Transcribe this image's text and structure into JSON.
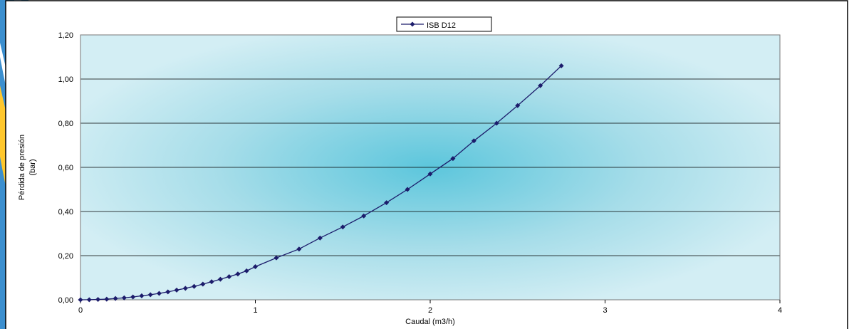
{
  "chart_data": {
    "type": "line",
    "x_label": "Caudal (m3/h)",
    "y_label": [
      "Pérdida de presión",
      "(bar)"
    ],
    "x": [
      0,
      0.05,
      0.1,
      0.15,
      0.2,
      0.25,
      0.3,
      0.35,
      0.4,
      0.45,
      0.5,
      0.55,
      0.6,
      0.65,
      0.7,
      0.75,
      0.8,
      0.85,
      0.9,
      0.95,
      1.0,
      1.12,
      1.25,
      1.37,
      1.5,
      1.62,
      1.75,
      1.87,
      2.0,
      2.13,
      2.25,
      2.38,
      2.5,
      2.63,
      2.75
    ],
    "series": [
      {
        "name": "ISB D12",
        "color": "#1c1c6b",
        "values": [
          0,
          0.0004,
          0.0015,
          0.003,
          0.006,
          0.009,
          0.013,
          0.018,
          0.023,
          0.029,
          0.036,
          0.044,
          0.052,
          0.061,
          0.071,
          0.082,
          0.093,
          0.105,
          0.117,
          0.131,
          0.15,
          0.19,
          0.23,
          0.28,
          0.33,
          0.38,
          0.44,
          0.5,
          0.57,
          0.64,
          0.72,
          0.8,
          0.88,
          0.97,
          1.06
        ]
      }
    ],
    "xlim": [
      0,
      4
    ],
    "xticks": [
      0,
      1,
      2,
      3,
      4
    ],
    "ylim": [
      0,
      1.2
    ],
    "yticks": [
      {
        "value": 0,
        "label": "0,00"
      },
      {
        "value": 0.2,
        "label": "0,20"
      },
      {
        "value": 0.4,
        "label": "0,40"
      },
      {
        "value": 0.6,
        "label": "0,60"
      },
      {
        "value": 0.8,
        "label": "0,80"
      },
      {
        "value": 1.0,
        "label": "1,00"
      },
      {
        "value": 1.2,
        "label": "1,20"
      }
    ],
    "grid": true,
    "legend": "top"
  }
}
